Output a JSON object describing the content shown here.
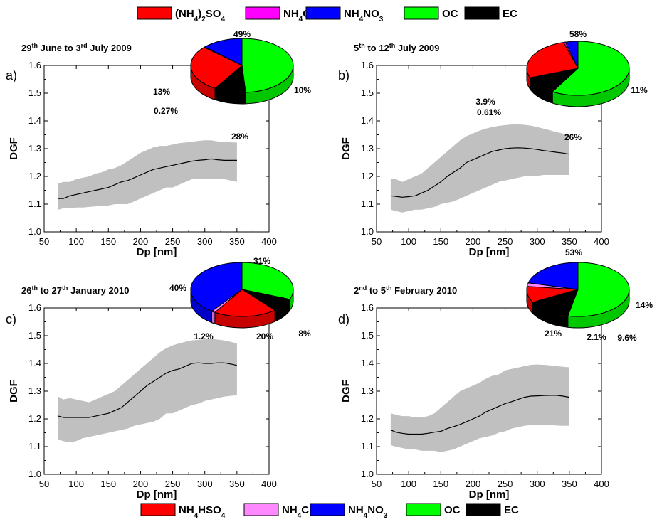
{
  "legend_top": {
    "items": [
      {
        "label": "(NH",
        "sub": "4",
        "mid": ")",
        "sub2": "2",
        "tail": "SO",
        "sub3": "4",
        "color": "#ff0000"
      },
      {
        "label": "NH",
        "sub": "4",
        "tail": "Cl",
        "color": "#ff00ff"
      },
      {
        "label": "NH",
        "sub": "4",
        "tail": "NO",
        "sub3": "3",
        "color": "#0000ff"
      },
      {
        "label": "OC",
        "color": "#00ff00"
      },
      {
        "label": "EC",
        "color": "#000000"
      }
    ]
  },
  "legend_bottom": {
    "items": [
      {
        "label": "NH",
        "sub": "4",
        "tail": "HSO",
        "sub3": "4",
        "color": "#ff0000"
      },
      {
        "label": "NH",
        "sub": "4",
        "tail": "Cl",
        "color": "#ff88ff"
      },
      {
        "label": "NH",
        "sub": "4",
        "tail": "NO",
        "sub3": "3",
        "color": "#0000ff"
      },
      {
        "label": "OC",
        "color": "#00ff00"
      },
      {
        "label": "EC",
        "color": "#000000"
      }
    ]
  },
  "chart_data": [
    {
      "type": "line",
      "panel_label": "a)",
      "title_parts": [
        {
          "t": "29"
        },
        {
          "t": "th",
          "sup": true
        },
        {
          "t": " June to 3"
        },
        {
          "t": "rd",
          "sup": true
        },
        {
          "t": " July 2009"
        }
      ],
      "xlabel": "Dp [nm]",
      "ylabel": "DGF",
      "xlim": [
        50,
        400
      ],
      "ylim": [
        1.0,
        1.6
      ],
      "xticks": [
        "50",
        "100",
        "150",
        "200",
        "250",
        "300",
        "350",
        "400"
      ],
      "yticks": [
        "1.0",
        "1.1",
        "1.2",
        "1.3",
        "1.4",
        "1.5",
        "1.6"
      ],
      "x": [
        72,
        80,
        90,
        100,
        110,
        120,
        130,
        140,
        150,
        160,
        170,
        180,
        190,
        200,
        210,
        220,
        230,
        240,
        250,
        260,
        270,
        280,
        290,
        300,
        310,
        320,
        330,
        340,
        350
      ],
      "mean": [
        1.12,
        1.12,
        1.13,
        1.135,
        1.14,
        1.145,
        1.15,
        1.155,
        1.16,
        1.17,
        1.18,
        1.185,
        1.195,
        1.205,
        1.215,
        1.225,
        1.23,
        1.235,
        1.24,
        1.245,
        1.25,
        1.255,
        1.258,
        1.26,
        1.263,
        1.26,
        1.258,
        1.258,
        1.258
      ],
      "upper": [
        1.175,
        1.18,
        1.18,
        1.19,
        1.195,
        1.2,
        1.21,
        1.215,
        1.225,
        1.23,
        1.24,
        1.255,
        1.27,
        1.285,
        1.295,
        1.305,
        1.31,
        1.31,
        1.315,
        1.32,
        1.322,
        1.325,
        1.328,
        1.33,
        1.33,
        1.326,
        1.324,
        1.323,
        1.322
      ],
      "lower": [
        1.08,
        1.085,
        1.085,
        1.088,
        1.088,
        1.09,
        1.092,
        1.095,
        1.095,
        1.1,
        1.1,
        1.1,
        1.11,
        1.12,
        1.13,
        1.14,
        1.15,
        1.16,
        1.16,
        1.17,
        1.18,
        1.19,
        1.19,
        1.19,
        1.19,
        1.19,
        1.19,
        1.185,
        1.18
      ],
      "pie": {
        "slices": [
          {
            "name": "OC",
            "value": 49,
            "color": "#00ff00",
            "label": "49%"
          },
          {
            "name": "EC",
            "value": 10,
            "color": "#000000",
            "label": "10%"
          },
          {
            "name": "(NH4)2SO4",
            "value": 28,
            "color": "#ff0000",
            "label": "28%"
          },
          {
            "name": "NH4Cl",
            "value": 0.27,
            "color": "#ff00ff",
            "label": "0.27%"
          },
          {
            "name": "NH4NO3",
            "value": 13,
            "color": "#0000ff",
            "label": "13%"
          }
        ]
      }
    },
    {
      "type": "line",
      "panel_label": "b)",
      "title_parts": [
        {
          "t": "5"
        },
        {
          "t": "th",
          "sup": true
        },
        {
          "t": " to 12"
        },
        {
          "t": "th",
          "sup": true
        },
        {
          "t": " July 2009"
        }
      ],
      "xlabel": "Dp [nm]",
      "ylabel": "DGF",
      "xlim": [
        50,
        400
      ],
      "ylim": [
        1.0,
        1.6
      ],
      "xticks": [
        "50",
        "100",
        "150",
        "200",
        "250",
        "300",
        "350",
        "400"
      ],
      "yticks": [
        "1.0",
        "1.1",
        "1.2",
        "1.3",
        "1.4",
        "1.5",
        "1.6"
      ],
      "x": [
        72,
        80,
        90,
        100,
        110,
        120,
        130,
        140,
        150,
        160,
        170,
        180,
        190,
        200,
        210,
        220,
        230,
        240,
        250,
        260,
        270,
        280,
        290,
        300,
        310,
        320,
        330,
        340,
        350
      ],
      "mean": [
        1.13,
        1.128,
        1.125,
        1.127,
        1.13,
        1.14,
        1.15,
        1.165,
        1.18,
        1.2,
        1.215,
        1.23,
        1.25,
        1.26,
        1.27,
        1.28,
        1.29,
        1.295,
        1.3,
        1.302,
        1.303,
        1.302,
        1.3,
        1.297,
        1.293,
        1.29,
        1.287,
        1.284,
        1.28
      ],
      "upper": [
        1.19,
        1.19,
        1.18,
        1.19,
        1.2,
        1.21,
        1.23,
        1.25,
        1.27,
        1.29,
        1.31,
        1.33,
        1.345,
        1.355,
        1.365,
        1.372,
        1.378,
        1.382,
        1.385,
        1.387,
        1.388,
        1.386,
        1.383,
        1.378,
        1.372,
        1.366,
        1.36,
        1.354,
        1.348
      ],
      "lower": [
        1.08,
        1.075,
        1.07,
        1.075,
        1.08,
        1.08,
        1.085,
        1.09,
        1.1,
        1.105,
        1.11,
        1.12,
        1.13,
        1.14,
        1.15,
        1.16,
        1.17,
        1.18,
        1.185,
        1.19,
        1.195,
        1.2,
        1.2,
        1.202,
        1.205,
        1.205,
        1.205,
        1.205,
        1.205
      ],
      "pie": {
        "slices": [
          {
            "name": "OC",
            "value": 58,
            "color": "#00ff00",
            "label": "58%"
          },
          {
            "name": "EC",
            "value": 11,
            "color": "#000000",
            "label": "11%"
          },
          {
            "name": "(NH4)2SO4",
            "value": 26,
            "color": "#ff0000",
            "label": "26%"
          },
          {
            "name": "NH4Cl",
            "value": 0.61,
            "color": "#ff00ff",
            "label": "0.61%"
          },
          {
            "name": "NH4NO3",
            "value": 3.9,
            "color": "#0000ff",
            "label": "3.9%"
          }
        ]
      }
    },
    {
      "type": "line",
      "panel_label": "c)",
      "title_parts": [
        {
          "t": "26"
        },
        {
          "t": "th",
          "sup": true
        },
        {
          "t": " to 27"
        },
        {
          "t": "th",
          "sup": true
        },
        {
          "t": " January 2010"
        }
      ],
      "xlabel": "Dp [nm]",
      "ylabel": "DGF",
      "xlim": [
        50,
        400
      ],
      "ylim": [
        1.0,
        1.6
      ],
      "xticks": [
        "50",
        "100",
        "150",
        "200",
        "250",
        "300",
        "350",
        "400"
      ],
      "yticks": [
        "1.0",
        "1.1",
        "1.2",
        "1.3",
        "1.4",
        "1.5",
        "1.6"
      ],
      "x": [
        72,
        80,
        90,
        100,
        110,
        120,
        130,
        140,
        150,
        160,
        170,
        180,
        190,
        200,
        210,
        220,
        230,
        240,
        250,
        260,
        270,
        280,
        290,
        300,
        310,
        320,
        330,
        340,
        350
      ],
      "mean": [
        1.21,
        1.205,
        1.205,
        1.205,
        1.205,
        1.205,
        1.21,
        1.215,
        1.22,
        1.23,
        1.24,
        1.26,
        1.28,
        1.3,
        1.32,
        1.335,
        1.35,
        1.365,
        1.375,
        1.38,
        1.39,
        1.4,
        1.402,
        1.4,
        1.4,
        1.402,
        1.402,
        1.398,
        1.393
      ],
      "upper": [
        1.28,
        1.27,
        1.275,
        1.27,
        1.265,
        1.26,
        1.27,
        1.28,
        1.29,
        1.3,
        1.32,
        1.34,
        1.36,
        1.38,
        1.4,
        1.42,
        1.44,
        1.455,
        1.465,
        1.472,
        1.478,
        1.483,
        1.485,
        1.487,
        1.488,
        1.486,
        1.483,
        1.478,
        1.472
      ],
      "lower": [
        1.125,
        1.12,
        1.115,
        1.12,
        1.13,
        1.135,
        1.14,
        1.145,
        1.15,
        1.155,
        1.16,
        1.165,
        1.175,
        1.18,
        1.185,
        1.19,
        1.2,
        1.22,
        1.22,
        1.23,
        1.24,
        1.25,
        1.255,
        1.265,
        1.27,
        1.275,
        1.28,
        1.283,
        1.285
      ],
      "pie": {
        "slices": [
          {
            "name": "OC",
            "value": 31,
            "color": "#00ff00",
            "label": "31%"
          },
          {
            "name": "EC",
            "value": 8,
            "color": "#000000",
            "label": "8%"
          },
          {
            "name": "NH4HSO4",
            "value": 20,
            "color": "#ff0000",
            "label": "20%"
          },
          {
            "name": "NH4Cl",
            "value": 1.2,
            "color": "#ff88ff",
            "label": "1.2%"
          },
          {
            "name": "NH4NO3",
            "value": 40,
            "color": "#0000ff",
            "label": "40%"
          }
        ]
      }
    },
    {
      "type": "line",
      "panel_label": "d)",
      "title_parts": [
        {
          "t": "2"
        },
        {
          "t": "nd",
          "sup": true
        },
        {
          "t": " to 5"
        },
        {
          "t": "th",
          "sup": true
        },
        {
          "t": " February 2010"
        }
      ],
      "xlabel": "Dp [nm]",
      "ylabel": "DGF",
      "xlim": [
        50,
        400
      ],
      "ylim": [
        1.0,
        1.6
      ],
      "xticks": [
        "50",
        "100",
        "150",
        "200",
        "250",
        "300",
        "350",
        "400"
      ],
      "yticks": [
        "1.0",
        "1.1",
        "1.2",
        "1.3",
        "1.4",
        "1.5",
        "1.6"
      ],
      "x": [
        72,
        80,
        90,
        100,
        110,
        120,
        130,
        140,
        150,
        160,
        170,
        180,
        190,
        200,
        210,
        220,
        230,
        240,
        250,
        260,
        270,
        280,
        290,
        300,
        310,
        320,
        330,
        340,
        350
      ],
      "mean": [
        1.16,
        1.152,
        1.148,
        1.145,
        1.145,
        1.145,
        1.148,
        1.152,
        1.155,
        1.165,
        1.172,
        1.18,
        1.19,
        1.2,
        1.21,
        1.225,
        1.235,
        1.245,
        1.255,
        1.262,
        1.27,
        1.278,
        1.282,
        1.283,
        1.284,
        1.285,
        1.285,
        1.282,
        1.278
      ],
      "upper": [
        1.22,
        1.215,
        1.21,
        1.21,
        1.205,
        1.205,
        1.21,
        1.22,
        1.24,
        1.26,
        1.28,
        1.3,
        1.31,
        1.32,
        1.33,
        1.345,
        1.355,
        1.36,
        1.375,
        1.38,
        1.385,
        1.39,
        1.395,
        1.396,
        1.395,
        1.393,
        1.39,
        1.388,
        1.386
      ],
      "lower": [
        1.105,
        1.1,
        1.095,
        1.09,
        1.09,
        1.085,
        1.085,
        1.085,
        1.08,
        1.085,
        1.09,
        1.1,
        1.11,
        1.12,
        1.13,
        1.135,
        1.14,
        1.15,
        1.155,
        1.165,
        1.17,
        1.175,
        1.178,
        1.178,
        1.178,
        1.178,
        1.176,
        1.175,
        1.175
      ],
      "pie": {
        "slices": [
          {
            "name": "OC",
            "value": 53,
            "color": "#00ff00",
            "label": "53%"
          },
          {
            "name": "EC",
            "value": 14,
            "color": "#000000",
            "label": "14%"
          },
          {
            "name": "NH4HSO4",
            "value": 9.6,
            "color": "#ff0000",
            "label": "9.6%"
          },
          {
            "name": "NH4Cl",
            "value": 2.1,
            "color": "#ff88ff",
            "label": "2.1%"
          },
          {
            "name": "NH4NO3",
            "value": 21,
            "color": "#0000ff",
            "label": "21%"
          }
        ]
      }
    }
  ]
}
